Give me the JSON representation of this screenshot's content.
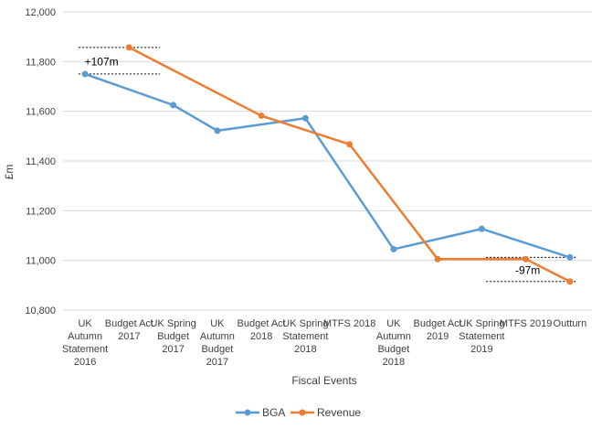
{
  "chart_data": {
    "type": "line",
    "title": "",
    "xlabel": "Fiscal Events",
    "ylabel": "£m",
    "ylim": [
      10800,
      12000
    ],
    "y_ticks": [
      10800,
      11000,
      11200,
      11400,
      11600,
      11800,
      12000
    ],
    "grid": "horizontal",
    "legend_position": "bottom",
    "categories": [
      [
        "UK",
        "Autumn",
        "Statement",
        "2016"
      ],
      [
        "Budget Act",
        "2017"
      ],
      [
        "UK Spring",
        "Budget",
        "2017"
      ],
      [
        "UK",
        "Autumn",
        "Budget",
        "2017"
      ],
      [
        "Budget Act",
        "2018"
      ],
      [
        "UK Spring",
        "Statement",
        "2018"
      ],
      [
        "MTFS 2018"
      ],
      [
        "UK",
        "Autumn",
        "Budget",
        "2018"
      ],
      [
        "Budget Act",
        "2019"
      ],
      [
        "UK Spring",
        "Statement",
        "2019"
      ],
      [
        "MTFS 2019"
      ],
      [
        "Outturn"
      ]
    ],
    "series": [
      {
        "name": "BGA",
        "color": "#5b9bd5",
        "values": [
          11750,
          null,
          11625,
          11522,
          null,
          11572,
          null,
          11045,
          null,
          11127,
          null,
          11012
        ]
      },
      {
        "name": "Revenue",
        "color": "#ed7d31",
        "values": [
          null,
          11857,
          null,
          null,
          11582,
          null,
          11467,
          null,
          11005,
          null,
          11005,
          10915
        ]
      }
    ],
    "annotations": [
      {
        "text": "+107m",
        "x_index": 0,
        "y": 11800,
        "bracket_low": 11750,
        "bracket_high": 11857
      },
      {
        "text": "-97m",
        "x_index": 10,
        "y": 10960,
        "bracket_low": 10915,
        "bracket_high": 11012
      }
    ]
  }
}
